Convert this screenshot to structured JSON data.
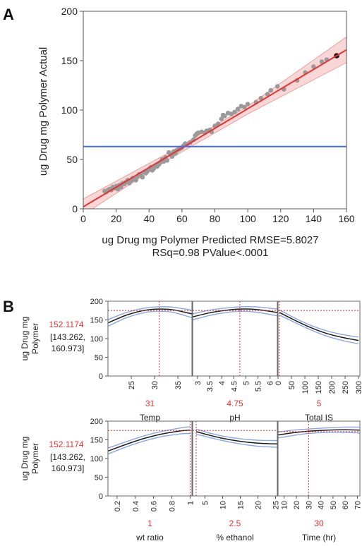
{
  "panel_a": {
    "letter": "A",
    "chart_data": {
      "type": "scatter",
      "title": "",
      "xlabel": "ug Drug mg Polymer Predicted RMSE=5.8027",
      "xlabel2": "RSq=0.98 PValue<.0001",
      "ylabel": "ug Drug mg Polymer Actual",
      "xlim": [
        0,
        160
      ],
      "ylim": [
        0,
        200
      ],
      "xticks": [
        0,
        20,
        40,
        60,
        80,
        100,
        120,
        140,
        160
      ],
      "yticks": [
        0,
        50,
        100,
        150,
        200
      ],
      "mean_line_y": 63,
      "fit_line": {
        "x": [
          0,
          160
        ],
        "y": [
          2,
          161
        ]
      },
      "confidence_band": {
        "x": [
          0,
          50,
          100,
          160
        ],
        "lower": [
          -6,
          48,
          96,
          148
        ],
        "upper": [
          10,
          55,
          104,
          174
        ]
      },
      "grid": false,
      "points": [
        [
          13,
          18
        ],
        [
          14,
          17
        ],
        [
          15,
          19
        ],
        [
          16,
          20
        ],
        [
          17,
          19
        ],
        [
          18,
          22
        ],
        [
          19,
          21
        ],
        [
          20,
          23
        ],
        [
          21,
          20
        ],
        [
          22,
          24
        ],
        [
          23,
          22
        ],
        [
          24,
          26
        ],
        [
          25,
          25
        ],
        [
          26,
          27
        ],
        [
          27,
          29
        ],
        [
          28,
          26
        ],
        [
          29,
          28
        ],
        [
          30,
          31
        ],
        [
          31,
          30
        ],
        [
          32,
          29
        ],
        [
          33,
          33
        ],
        [
          34,
          35
        ],
        [
          35,
          34
        ],
        [
          36,
          32
        ],
        [
          37,
          37
        ],
        [
          38,
          36
        ],
        [
          39,
          38
        ],
        [
          40,
          40
        ],
        [
          41,
          42
        ],
        [
          42,
          39
        ],
        [
          43,
          41
        ],
        [
          44,
          44
        ],
        [
          45,
          43
        ],
        [
          46,
          45
        ],
        [
          47,
          47
        ],
        [
          48,
          50
        ],
        [
          49,
          48
        ],
        [
          50,
          52
        ],
        [
          51,
          49
        ],
        [
          52,
          57
        ],
        [
          53,
          55
        ],
        [
          54,
          53
        ],
        [
          55,
          58
        ],
        [
          56,
          56
        ],
        [
          57,
          59
        ],
        [
          58,
          60
        ],
        [
          59,
          61
        ],
        [
          60,
          62
        ],
        [
          61,
          64
        ],
        [
          62,
          66
        ],
        [
          63,
          65
        ],
        [
          65,
          67
        ],
        [
          67,
          70
        ],
        [
          68,
          74
        ],
        [
          69,
          76
        ],
        [
          70,
          77
        ],
        [
          72,
          78
        ],
        [
          74,
          77
        ],
        [
          75,
          79
        ],
        [
          77,
          80
        ],
        [
          78,
          78
        ],
        [
          80,
          84
        ],
        [
          82,
          86
        ],
        [
          84,
          91
        ],
        [
          85,
          95
        ],
        [
          86,
          94
        ],
        [
          88,
          97
        ],
        [
          90,
          96
        ],
        [
          92,
          98
        ],
        [
          94,
          101
        ],
        [
          96,
          104
        ],
        [
          98,
          103
        ],
        [
          100,
          106
        ],
        [
          105,
          108
        ],
        [
          108,
          112
        ],
        [
          112,
          116
        ],
        [
          114,
          120
        ],
        [
          118,
          124
        ],
        [
          122,
          121
        ],
        [
          130,
          130
        ],
        [
          135,
          138
        ],
        [
          140,
          144
        ],
        [
          145,
          149
        ],
        [
          148,
          151
        ]
      ],
      "highlight_point": [
        154,
        155
      ]
    }
  },
  "panel_b": {
    "letter": "B",
    "rows": [
      {
        "ylabel_lines": [
          "ug Drug mg",
          "Polymer"
        ],
        "value": "152.1174",
        "interval_lines": [
          "[143.262,",
          "160.973]"
        ],
        "yticks": [
          0,
          50,
          100,
          150,
          200
        ],
        "ylim": [
          0,
          200
        ],
        "profiler_charts": [
          {
            "type": "line",
            "factor": "Temp",
            "current": "31",
            "current_x": 31,
            "xlim": [
              20,
              38
            ],
            "xticks": [
              25,
              30,
              35
            ],
            "ref_y": 175,
            "x": [
              20,
              24,
              28,
              31,
              34,
              38
            ],
            "y": [
              142,
              163,
              176,
              179,
              177,
              166
            ],
            "lower": [
              133,
              156,
              170,
              173,
              170,
              156
            ],
            "upper": [
              151,
              170,
              182,
              185,
              184,
              176
            ]
          },
          {
            "type": "line",
            "factor": "pH",
            "current": "4.75",
            "current_x": 4.75,
            "xlim": [
              2.8,
              6.3
            ],
            "xticks": [
              3,
              3.5,
              4,
              4.5,
              5,
              5.5,
              6
            ],
            "xtick_labels": [
              "3",
              "3.5",
              "4",
              "4.5",
              "5",
              "5.5",
              "6"
            ],
            "ref_y": 175,
            "x": [
              2.8,
              3.5,
              4.2,
              4.75,
              5.4,
              6.3
            ],
            "y": [
              158,
              169,
              176,
              179,
              178,
              170
            ],
            "lower": [
              150,
              162,
              170,
              173,
              171,
              161
            ],
            "upper": [
              166,
              176,
              182,
              185,
              185,
              179
            ]
          },
          {
            "type": "line",
            "factor": "Total IS",
            "current": "5",
            "current_x": 5,
            "xlim": [
              0,
              305
            ],
            "xticks": [
              0,
              50,
              100,
              150,
              200,
              250,
              300
            ],
            "ref_y": 175,
            "x": [
              5,
              60,
              120,
              180,
              240,
              300
            ],
            "y": [
              170,
              150,
              130,
              114,
              103,
              95
            ],
            "lower": [
              163,
              144,
              124,
              107,
              95,
              86
            ],
            "upper": [
              177,
              156,
              136,
              121,
              111,
              104
            ]
          }
        ]
      },
      {
        "ylabel_lines": [
          "ug Drug mg",
          "Polymer"
        ],
        "value": "152.1174",
        "interval_lines": [
          "[143.262,",
          "160.973]"
        ],
        "yticks": [
          0,
          50,
          100,
          150,
          200
        ],
        "ylim": [
          0,
          200
        ],
        "profiler_charts": [
          {
            "type": "line",
            "factor": "wt ratio",
            "current": "1",
            "current_x": 1,
            "xlim": [
              0.1,
              1.02
            ],
            "xticks": [
              0.2,
              0.4,
              0.6,
              0.8,
              1
            ],
            "xtick_labels": [
              "0.2",
              "0.4",
              "0.6",
              "0.8",
              "1"
            ],
            "ref_y": 175,
            "x": [
              0.1,
              0.3,
              0.5,
              0.7,
              0.9,
              1.0
            ],
            "y": [
              120,
              138,
              154,
              166,
              174,
              176
            ],
            "lower": [
              112,
              131,
              147,
              159,
              166,
              167
            ],
            "upper": [
              128,
              145,
              161,
              173,
              182,
              185
            ]
          },
          {
            "type": "line",
            "factor": "% ethanol",
            "current": "2.5",
            "current_x": 2.5,
            "xlim": [
              1.5,
              25.5
            ],
            "xticks": [
              5,
              10,
              15,
              20,
              25
            ],
            "ref_y": 175,
            "x": [
              2.5,
              6,
              10,
              15,
              20,
              25.5
            ],
            "y": [
              172,
              163,
              154,
              146,
              141,
              139
            ],
            "lower": [
              165,
              157,
              148,
              139,
              133,
              130
            ],
            "upper": [
              179,
              169,
              160,
              153,
              149,
              148
            ]
          },
          {
            "type": "line",
            "factor": "Time (hr)",
            "current": "30",
            "current_x": 30,
            "xlim": [
              5,
              72
            ],
            "xticks": [
              10,
              20,
              30,
              40,
              50,
              60,
              70
            ],
            "ref_y": 172,
            "x": [
              5,
              18,
              30,
              45,
              60,
              72
            ],
            "y": [
              163,
              169,
              173,
              176,
              177,
              176
            ],
            "lower": [
              155,
              162,
              167,
              170,
              170,
              168
            ],
            "upper": [
              171,
              176,
              179,
              182,
              184,
              184
            ]
          }
        ]
      }
    ],
    "colors": {
      "value": "#e8312f",
      "band": "#8aa6e8",
      "curve": "#1a1a1a",
      "ref": "#e8312f"
    }
  },
  "colors": {
    "fit": "#e63232",
    "band": "#f6c6c6",
    "mean": "#3f6ee8",
    "point": "#9a9a9a",
    "highlight": "#111111",
    "axis": "#555555"
  }
}
